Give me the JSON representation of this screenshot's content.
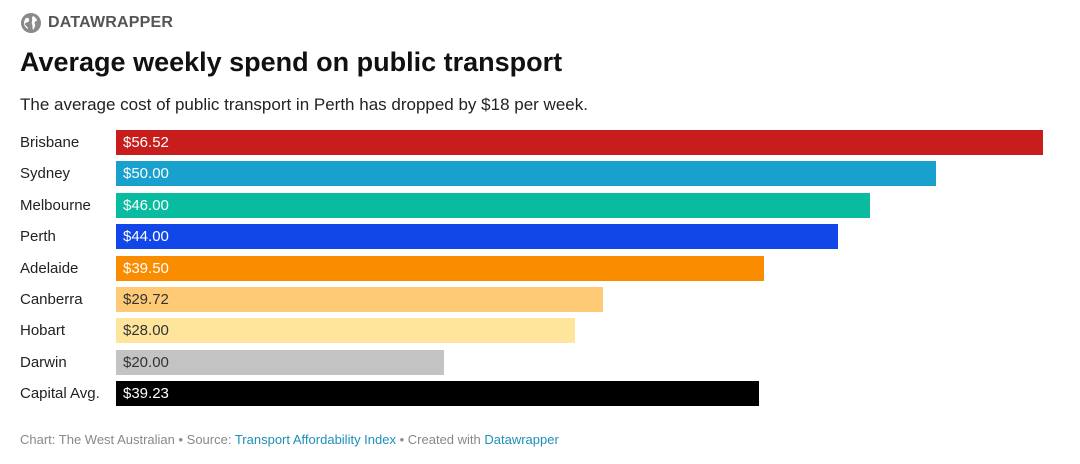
{
  "brand": {
    "name": "DATAWRAPPER",
    "icon": "globe-icon"
  },
  "chart_data": {
    "type": "bar",
    "orientation": "horizontal",
    "title": "Average weekly spend on public transport",
    "subtitle": "The average cost of public transport in Perth has dropped by $18 per week.",
    "categories": [
      "Brisbane",
      "Sydney",
      "Melbourne",
      "Perth",
      "Adelaide",
      "Canberra",
      "Hobart",
      "Darwin",
      "Capital Avg."
    ],
    "values": [
      56.52,
      50.0,
      46.0,
      44.0,
      39.5,
      29.72,
      28.0,
      20.0,
      39.23
    ],
    "value_labels": [
      "$56.52",
      "$50.00",
      "$46.00",
      "$44.00",
      "$39.50",
      "$29.72",
      "$28.00",
      "$20.00",
      "$39.23"
    ],
    "colors": [
      "#c71e1d",
      "#18a1cd",
      "#09bb9f",
      "#1146e8",
      "#fa8c00",
      "#ffca76",
      "#ffe59c",
      "#c3c3c3",
      "#000000"
    ],
    "label_colors": [
      "#ffffff",
      "#ffffff",
      "#ffffff",
      "#ffffff",
      "#ffffff",
      "#333333",
      "#333333",
      "#333333",
      "#ffffff"
    ],
    "xlim": [
      0,
      56.52
    ],
    "grid": false,
    "legend": "none"
  },
  "footer": {
    "chart_prefix": "Chart: ",
    "chart_author": "The West Australian",
    "source_prefix": " • Source: ",
    "source_name": "Transport Affordability Index",
    "created_prefix": " • Created with ",
    "created_with": "Datawrapper"
  }
}
